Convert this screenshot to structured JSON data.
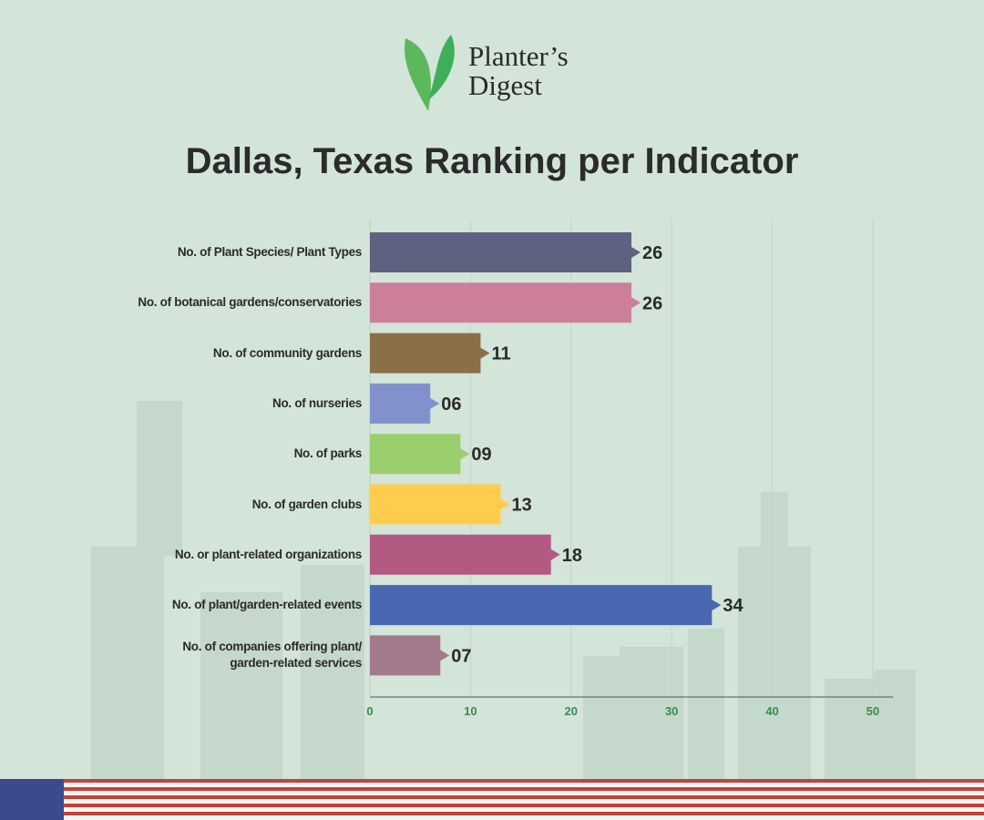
{
  "brand": {
    "line1": "Planter’s",
    "line2": "Digest"
  },
  "chart_data": {
    "type": "bar",
    "orientation": "horizontal",
    "title": "Dallas, Texas Ranking per Indicator",
    "categories": [
      "No. of Plant Species/ Plant Types",
      "No. of botanical gardens/conservatories",
      "No. of community gardens",
      "No. of nurseries",
      "No. of parks",
      "No. of garden clubs",
      "No. or plant-related organizations",
      "No. of plant/garden-related events",
      "No. of companies offering plant/\ngarden-related services"
    ],
    "values": [
      26,
      26,
      11,
      6,
      9,
      13,
      18,
      34,
      7
    ],
    "value_labels": [
      "26",
      "26",
      "11",
      "06",
      "09",
      "13",
      "18",
      "34",
      "07"
    ],
    "colors": [
      "#5e6180",
      "#cd7f9a",
      "#8b6f47",
      "#8290cc",
      "#9bcf6e",
      "#ffcd4e",
      "#b35a82",
      "#4a67b1",
      "#a37a8c"
    ],
    "xlim": [
      0,
      52
    ],
    "xticks": [
      0,
      10,
      20,
      30,
      40,
      50
    ],
    "grid": true
  }
}
